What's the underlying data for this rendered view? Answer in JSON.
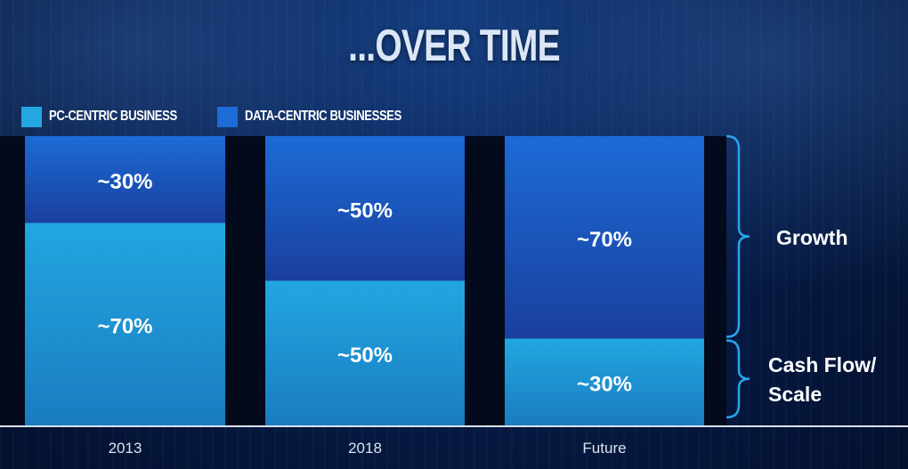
{
  "title": "...OVER TIME",
  "legend": {
    "pc": {
      "label": "PC-CENTRIC BUSINESS",
      "color": "#22a7e0"
    },
    "dc": {
      "label": "DATA-CENTRIC BUSINESSES",
      "color": "#1c6bd6"
    }
  },
  "chart_data": {
    "type": "bar",
    "stacked": true,
    "categories": [
      "2013",
      "2018",
      "Future"
    ],
    "series": [
      {
        "name": "PC-CENTRIC BUSINESS",
        "values": [
          70,
          50,
          30
        ],
        "labels": [
          "~70%",
          "~50%",
          "~30%"
        ],
        "color": "#22a7e0"
      },
      {
        "name": "DATA-CENTRIC BUSINESSES",
        "values": [
          30,
          50,
          70
        ],
        "labels": [
          "~30%",
          "~50%",
          "~70%"
        ],
        "color": "#1c6bd6"
      }
    ],
    "ylim": [
      0,
      100
    ],
    "annotations": [
      "Growth",
      "Cash Flow/ Scale"
    ],
    "annotation_lines": {
      "growth": [
        "Growth"
      ],
      "cashflow": [
        "Cash Flow/",
        "Scale"
      ]
    }
  }
}
